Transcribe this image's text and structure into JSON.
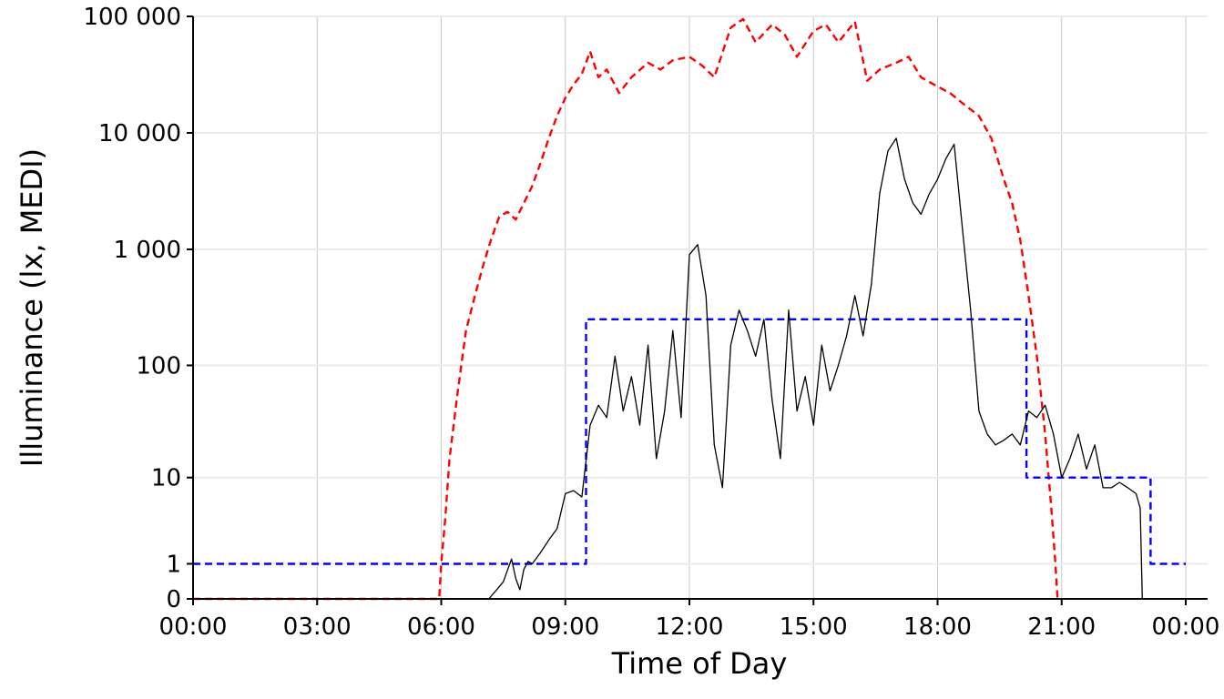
{
  "chart_data": {
    "type": "line",
    "title": "",
    "xlabel": "Time of Day",
    "ylabel": "Illuminance (lx, MEDI)",
    "x_unit": "hours",
    "xlim": [
      0,
      24
    ],
    "x_ticks": [
      {
        "value": 0,
        "label": "00:00"
      },
      {
        "value": 3,
        "label": "03:00"
      },
      {
        "value": 6,
        "label": "06:00"
      },
      {
        "value": 9,
        "label": "09:00"
      },
      {
        "value": 12,
        "label": "12:00"
      },
      {
        "value": 15,
        "label": "15:00"
      },
      {
        "value": 18,
        "label": "18:00"
      },
      {
        "value": 21,
        "label": "21:00"
      },
      {
        "value": 24,
        "label": "00:00"
      }
    ],
    "y_scale": "symlog",
    "ylim": [
      0,
      100000
    ],
    "y_ticks": [
      {
        "value": 0,
        "label": "0"
      },
      {
        "value": 1,
        "label": "1"
      },
      {
        "value": 10,
        "label": "10"
      },
      {
        "value": 100,
        "label": "100"
      },
      {
        "value": 1000,
        "label": "1 000"
      },
      {
        "value": 10000,
        "label": "10 000"
      },
      {
        "value": 100000,
        "label": "100 000"
      }
    ],
    "grid": {
      "x": true,
      "y": true
    },
    "legend": "none",
    "series": [
      {
        "style": "dashed",
        "color": "#ff0000",
        "x": [
          0,
          5.95,
          6.0,
          6.1,
          6.2,
          6.4,
          6.6,
          6.8,
          7.0,
          7.2,
          7.4,
          7.6,
          7.8,
          8.0,
          8.2,
          8.4,
          8.6,
          8.8,
          9.0,
          9.2,
          9.4,
          9.6,
          9.8,
          10.0,
          10.3,
          10.6,
          11.0,
          11.3,
          11.6,
          12.0,
          12.3,
          12.6,
          13.0,
          13.3,
          13.6,
          14.0,
          14.3,
          14.6,
          15.0,
          15.3,
          15.6,
          16.0,
          16.3,
          16.6,
          17.0,
          17.3,
          17.6,
          18.0,
          18.3,
          18.6,
          19.0,
          19.3,
          19.6,
          19.8,
          20.0,
          20.2,
          20.4,
          20.6,
          20.75,
          20.85,
          20.9
        ],
        "y": [
          0,
          0,
          1,
          4,
          15,
          60,
          200,
          380,
          700,
          1200,
          1900,
          2100,
          1800,
          2500,
          3500,
          5500,
          9000,
          14000,
          20000,
          26000,
          32000,
          50000,
          30000,
          35000,
          22000,
          30000,
          40000,
          35000,
          42000,
          45000,
          38000,
          30000,
          80000,
          95000,
          60000,
          85000,
          70000,
          45000,
          75000,
          85000,
          60000,
          90000,
          28000,
          35000,
          40000,
          45000,
          30000,
          25000,
          22000,
          18000,
          14000,
          9000,
          4000,
          2500,
          1200,
          400,
          120,
          25,
          5,
          1,
          0
        ]
      },
      {
        "style": "dashed",
        "color": "#0000ff",
        "x": [
          0,
          9.5,
          9.5,
          20.15,
          20.15,
          23.15,
          23.15,
          24
        ],
        "y": [
          1,
          1,
          250,
          250,
          10,
          10,
          1,
          1
        ]
      },
      {
        "style": "solid",
        "color": "#000000",
        "x": [
          0,
          7.15,
          7.3,
          7.5,
          7.7,
          7.8,
          7.9,
          8.0,
          8.1,
          8.2,
          8.4,
          8.6,
          8.8,
          9.0,
          9.2,
          9.4,
          9.6,
          9.8,
          10.0,
          10.2,
          10.4,
          10.6,
          10.8,
          11.0,
          11.2,
          11.4,
          11.6,
          11.8,
          12.0,
          12.2,
          12.4,
          12.6,
          12.8,
          13.0,
          13.2,
          13.4,
          13.6,
          13.8,
          14.0,
          14.2,
          14.4,
          14.6,
          14.8,
          15.0,
          15.2,
          15.4,
          15.6,
          15.8,
          16.0,
          16.2,
          16.4,
          16.6,
          16.8,
          17.0,
          17.2,
          17.4,
          17.6,
          17.8,
          18.0,
          18.2,
          18.4,
          18.6,
          18.8,
          19.0,
          19.2,
          19.4,
          19.6,
          19.8,
          20.0,
          20.2,
          20.4,
          20.6,
          20.8,
          21.0,
          21.2,
          21.4,
          21.6,
          21.8,
          22.0,
          22.2,
          22.4,
          22.6,
          22.8,
          22.9,
          22.95,
          23.0,
          24.0
        ],
        "y": [
          0,
          0,
          0.15,
          0.4,
          1.2,
          0.5,
          0.2,
          0.8,
          1.1,
          1.0,
          1.5,
          2.2,
          3.0,
          7.0,
          7.5,
          6.5,
          30,
          45,
          35,
          120,
          40,
          80,
          30,
          150,
          15,
          40,
          200,
          35,
          900,
          1100,
          400,
          20,
          8,
          150,
          300,
          200,
          120,
          250,
          50,
          15,
          300,
          40,
          80,
          30,
          150,
          60,
          100,
          180,
          400,
          180,
          500,
          3000,
          7000,
          9000,
          4000,
          2500,
          2000,
          3000,
          4000,
          6000,
          8000,
          1500,
          300,
          40,
          25,
          20,
          22,
          25,
          20,
          40,
          35,
          45,
          25,
          10,
          15,
          25,
          12,
          20,
          8,
          8,
          9,
          8,
          7,
          5,
          0,
          0,
          0
        ]
      }
    ]
  }
}
